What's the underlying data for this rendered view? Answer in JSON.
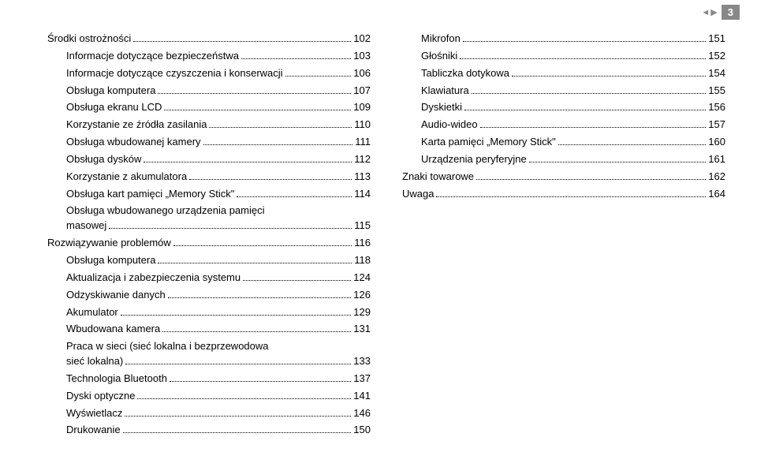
{
  "page_number": "3",
  "left_column": [
    {
      "label": "Środki ostrożności",
      "page": "102",
      "indent": 0
    },
    {
      "label": "Informacje dotyczące bezpieczeństwa",
      "page": "103",
      "indent": 1
    },
    {
      "label": "Informacje dotyczące czyszczenia i konserwacji",
      "page": "106",
      "indent": 1
    },
    {
      "label": "Obsługa komputera",
      "page": "107",
      "indent": 1
    },
    {
      "label": "Obsługa ekranu LCD",
      "page": "109",
      "indent": 1
    },
    {
      "label": "Korzystanie ze źródła zasilania",
      "page": "110",
      "indent": 1
    },
    {
      "label": "Obsługa wbudowanej kamery",
      "page": "111",
      "indent": 1
    },
    {
      "label": "Obsługa dysków",
      "page": "112",
      "indent": 1
    },
    {
      "label": "Korzystanie z akumulatora",
      "page": "113",
      "indent": 1
    },
    {
      "label": "Obsługa kart pamięci „Memory Stick\"",
      "page": "114",
      "indent": 1
    },
    {
      "label": "Obsługa wbudowanego urządzenia pamięci",
      "label2": "masowej",
      "page": "115",
      "indent": 1,
      "multiline": true
    },
    {
      "label": "Rozwiązywanie problemów",
      "page": "116",
      "indent": 0
    },
    {
      "label": "Obsługa komputera",
      "page": "118",
      "indent": 1
    },
    {
      "label": "Aktualizacja i zabezpieczenia systemu",
      "page": "124",
      "indent": 1
    },
    {
      "label": "Odzyskiwanie danych",
      "page": "126",
      "indent": 1
    },
    {
      "label": "Akumulator",
      "page": "129",
      "indent": 1
    },
    {
      "label": "Wbudowana kamera",
      "page": "131",
      "indent": 1
    },
    {
      "label": "Praca w sieci (sieć lokalna i bezprzewodowa",
      "label2": "sieć lokalna)",
      "page": "133",
      "indent": 1,
      "multiline": true
    },
    {
      "label": "Technologia Bluetooth",
      "page": "137",
      "indent": 1
    },
    {
      "label": "Dyski optyczne",
      "page": "141",
      "indent": 1
    },
    {
      "label": "Wyświetlacz",
      "page": "146",
      "indent": 1
    },
    {
      "label": "Drukowanie",
      "page": "150",
      "indent": 1
    }
  ],
  "right_column": [
    {
      "label": "Mikrofon",
      "page": "151",
      "indent": 1
    },
    {
      "label": "Głośniki",
      "page": "152",
      "indent": 1
    },
    {
      "label": "Tabliczka dotykowa",
      "page": "154",
      "indent": 1
    },
    {
      "label": "Klawiatura",
      "page": "155",
      "indent": 1
    },
    {
      "label": "Dyskietki",
      "page": "156",
      "indent": 1
    },
    {
      "label": "Audio-wideo",
      "page": "157",
      "indent": 1
    },
    {
      "label": "Karta pamięci „Memory Stick\"",
      "page": "160",
      "indent": 1
    },
    {
      "label": "Urządzenia peryferyjne",
      "page": "161",
      "indent": 1
    },
    {
      "label": "Znaki towarowe",
      "page": "162",
      "indent": 0
    },
    {
      "label": "Uwaga",
      "page": "164",
      "indent": 0
    }
  ]
}
